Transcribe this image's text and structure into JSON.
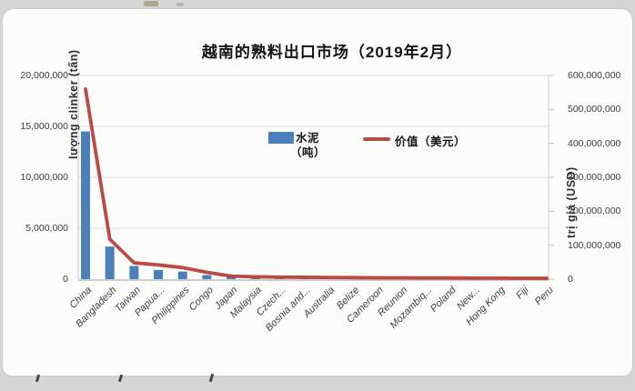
{
  "chart_data": {
    "type": "bar+line",
    "title": "越南的熟料出口市场（2019年2月）",
    "categories": [
      "China",
      "Bangladesh",
      "Taiwan",
      "Papua...",
      "Philippines",
      "Congo",
      "Japan",
      "Malaysia",
      "Czech...",
      "Bosnia and...",
      "Australia",
      "Belize",
      "Cameroon",
      "Reunion",
      "Mozambiq...",
      "Poland",
      "New...",
      "Hong Kong",
      "Fiji",
      "Peru"
    ],
    "series": [
      {
        "name": "水泥（吨）",
        "type": "bar",
        "axis": "left",
        "color": "#4b7fbb",
        "values": [
          14500000,
          3200000,
          1300000,
          900000,
          750000,
          400000,
          200000,
          150000,
          120000,
          100000,
          90000,
          80000,
          70000,
          60000,
          50000,
          50000,
          40000,
          30000,
          25000,
          20000
        ]
      },
      {
        "name": "价值（美元）",
        "type": "line",
        "axis": "right",
        "color": "#bb4a44",
        "values": [
          560000000,
          118000000,
          48000000,
          42000000,
          34000000,
          20000000,
          9000000,
          7000000,
          6000000,
          5500000,
          5000000,
          4500000,
          4000000,
          4000000,
          3500000,
          3500000,
          3000000,
          3000000,
          2500000,
          2500000
        ]
      }
    ],
    "left_axis": {
      "label": "lượng clinker (tấn)",
      "min": 0,
      "max": 20000000,
      "tick_step": 5000000
    },
    "right_axis": {
      "label": "trị giá (USD)",
      "min": 0,
      "max": 600000000,
      "tick_step": 100000000
    },
    "grid": "horizontal",
    "legend_position": "inside-top-center"
  },
  "legend": {
    "bar_label_line1": "水泥",
    "bar_label_line2": "（吨）",
    "line_label": "价值（美元）"
  },
  "colors": {
    "bar": "#4b7fbb",
    "line": "#bb4a44",
    "gridline": "#dcdcdc",
    "axis": "#c3c3c3",
    "page_background": "#d6d6d6",
    "card_background": "#fcfcfb"
  }
}
